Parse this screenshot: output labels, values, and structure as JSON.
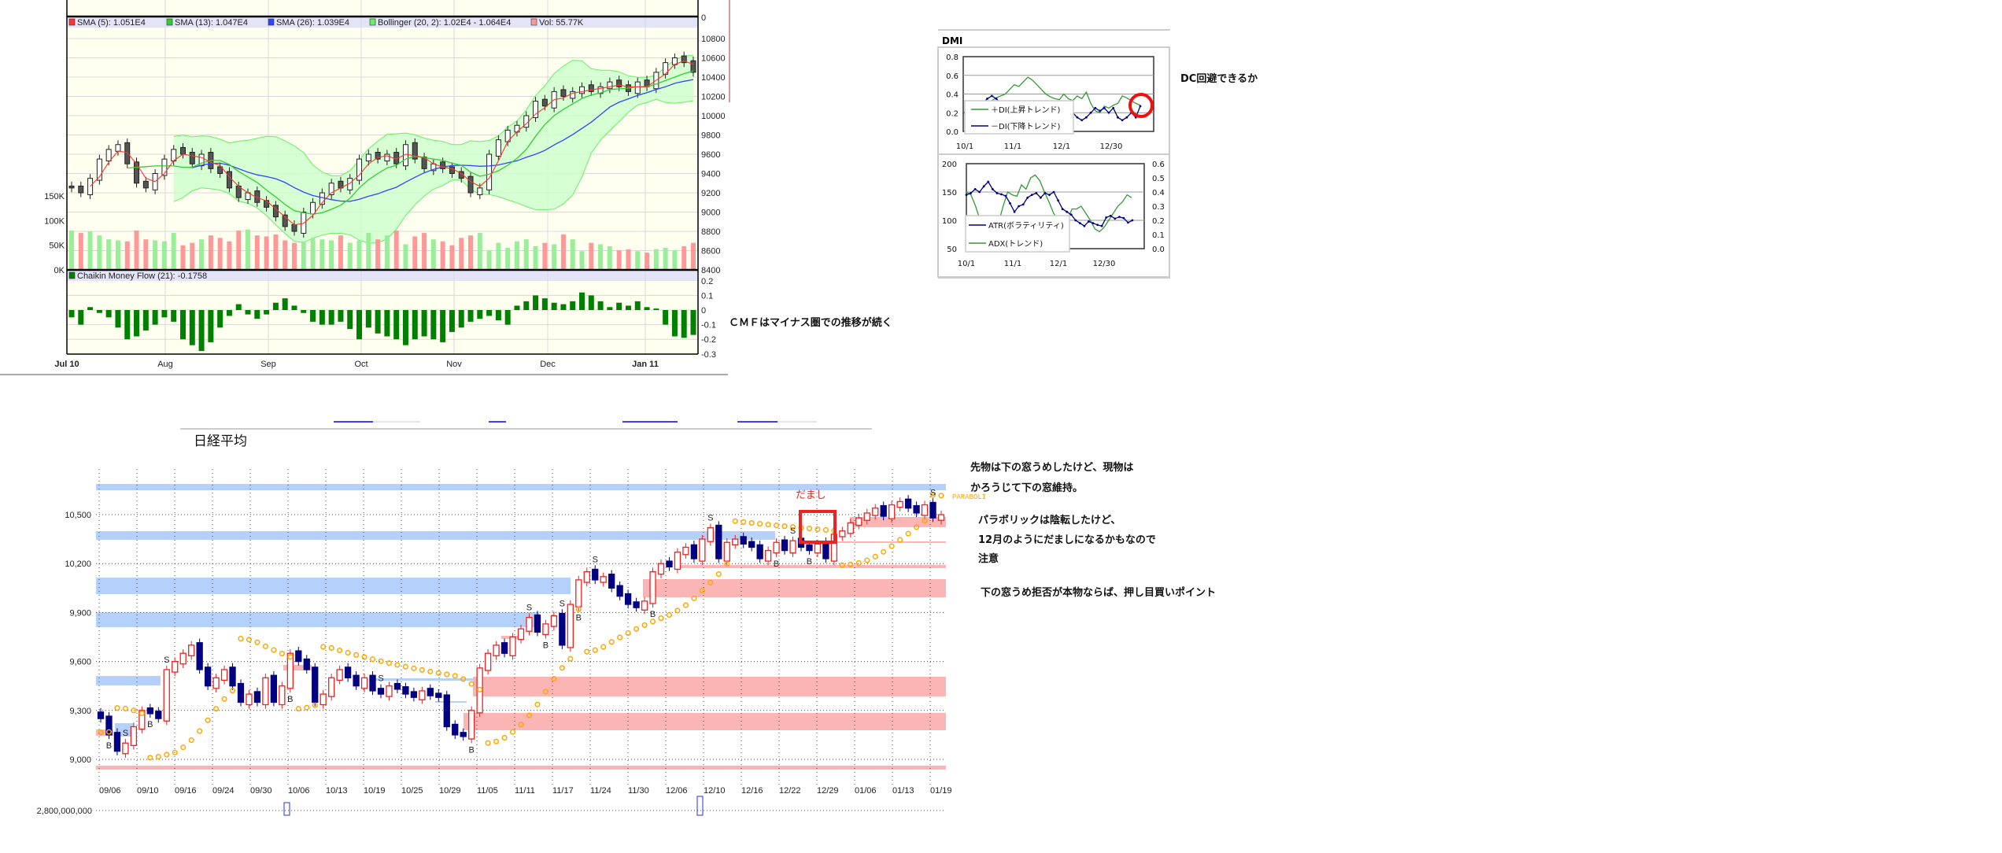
{
  "annotations": {
    "cmf_note": "ＣＭＦはマイナス圏での推移が続く",
    "dc_note": "DC回避できるか",
    "note1_line1": "先物は下の窓うめしたけど、現物は",
    "note1_line2": "かろうじて下の窓維持。",
    "note2_line1": "パラボリックは陰転したけど、",
    "note2_line2": "12月のようにだましになるかもなので",
    "note2_line3": "注意",
    "note3": "下の窓うめ拒否が本物ならば、押し目買いポイント"
  },
  "colors": {
    "sma5": "#ff3333",
    "sma13": "#33cc33",
    "sma26": "#3344ff",
    "bollinger": "#66ee66",
    "band_fill": "#ccffcc",
    "vol_up": "#99ee99",
    "vol_down": "#ff9999",
    "cmf": "#008000",
    "nikkei_up": "#ee2222",
    "nikkei_down": "#000080",
    "psar": "#ffa500",
    "blue_band": "#b3d1fb",
    "pink_band": "#fbb5b5",
    "circle": "#ee1111"
  },
  "chart_data": [
    {
      "type": "candlestick",
      "legend": {
        "sma5": "SMA (5): 1.051E4",
        "sma13": "SMA (13): 1.047E4",
        "sma26": "SMA (26): 1.039E4",
        "bollinger": "Bollinger (20, 2): 1.02E4 - 1.064E4",
        "vol": "Vol: 55.77K",
        "cmf": "Chaikin Money Flow (21): -0.1758"
      },
      "x_ticks": [
        "Jul 10",
        "Aug",
        "Sep",
        "Oct",
        "Nov",
        "Dec",
        "Jan 11"
      ],
      "y_ticks": [
        "0",
        "10800",
        "10600",
        "10400",
        "10200",
        "10000",
        "9800",
        "9600",
        "9400",
        "9200",
        "9000",
        "8800",
        "8600",
        "8400"
      ],
      "ylim": [
        8400,
        10800
      ],
      "volume_ticks": [
        "150K",
        "100K",
        "50K",
        "0K"
      ],
      "cmf_ticks": [
        "0.2",
        "0.1",
        "0",
        "-0.1",
        "-0.2",
        "-0.3"
      ],
      "close": [
        9250,
        9200,
        9350,
        9550,
        9650,
        9700,
        9500,
        9300,
        9250,
        9400,
        9550,
        9650,
        9600,
        9500,
        9600,
        9450,
        9400,
        9250,
        9150,
        9200,
        9100,
        9050,
        8950,
        8850,
        8800,
        9000,
        9100,
        9200,
        9300,
        9250,
        9350,
        9550,
        9600,
        9550,
        9600,
        9500,
        9700,
        9550,
        9450,
        9500,
        9450,
        9400,
        9350,
        9200,
        9250,
        9600,
        9750,
        9850,
        9900,
        10000,
        10150,
        10100,
        10250,
        10200,
        10250,
        10300,
        10250,
        10300,
        10350,
        10300,
        10250,
        10350,
        10300,
        10450,
        10550,
        10600,
        10550,
        10450
      ],
      "volume_k": [
        80,
        75,
        78,
        70,
        62,
        60,
        58,
        80,
        62,
        60,
        58,
        75,
        50,
        55,
        62,
        70,
        65,
        58,
        80,
        82,
        70,
        68,
        72,
        60,
        55,
        58,
        65,
        62,
        60,
        70,
        55,
        60,
        75,
        62,
        70,
        80,
        52,
        68,
        75,
        62,
        58,
        50,
        65,
        70,
        75,
        40,
        55,
        45,
        58,
        62,
        48,
        55,
        52,
        72,
        62,
        38,
        55,
        52,
        48,
        40,
        42,
        38,
        35,
        42,
        45,
        40,
        48,
        55
      ],
      "cmf": [
        -0.05,
        -0.1,
        0.02,
        -0.02,
        -0.05,
        -0.12,
        -0.2,
        -0.18,
        -0.14,
        -0.1,
        -0.05,
        -0.08,
        -0.2,
        -0.24,
        -0.28,
        -0.22,
        -0.12,
        -0.04,
        0.04,
        -0.03,
        -0.06,
        -0.03,
        0.05,
        0.08,
        0.03,
        -0.02,
        -0.08,
        -0.1,
        -0.1,
        -0.08,
        -0.13,
        -0.2,
        -0.12,
        -0.16,
        -0.18,
        -0.2,
        -0.24,
        -0.2,
        -0.18,
        -0.2,
        -0.22,
        -0.15,
        -0.12,
        -0.08,
        -0.06,
        -0.04,
        -0.07,
        -0.1,
        0.03,
        0.06,
        0.1,
        0.08,
        0.05,
        0.04,
        0.06,
        0.12,
        0.1,
        0.06,
        0.02,
        0.05,
        0.03,
        0.06,
        0.02,
        0.01,
        -0.1,
        -0.18,
        -0.19,
        -0.17
      ]
    },
    {
      "type": "candlestick",
      "title": "日経平均",
      "x_ticks": [
        "09/06",
        "09/10",
        "09/16",
        "09/24",
        "09/30",
        "10/06",
        "10/13",
        "10/19",
        "10/25",
        "10/29",
        "11/05",
        "11/11",
        "11/17",
        "11/24",
        "11/30",
        "12/06",
        "12/10",
        "12/16",
        "12/22",
        "12/29",
        "01/06",
        "01/13",
        "01/19"
      ],
      "y_ticks": [
        "10,500",
        "10,200",
        "9,900",
        "9,600",
        "9,300",
        "9,000"
      ],
      "ylim": [
        8850,
        10720
      ],
      "volume_tick": "2,800,000,000",
      "annotation": "だまし",
      "indicator_label": "PARABOLI",
      "close": [
        9250,
        9150,
        9050,
        9100,
        9200,
        9300,
        9280,
        9250,
        9550,
        9600,
        9650,
        9700,
        9550,
        9450,
        9500,
        9550,
        9450,
        9350,
        9400,
        9350,
        9500,
        9350,
        9450,
        9650,
        9600,
        9550,
        9350,
        9400,
        9500,
        9550,
        9500,
        9450,
        9500,
        9420,
        9400,
        9450,
        9430,
        9400,
        9380,
        9420,
        9390,
        9380,
        9200,
        9150,
        9140,
        9300,
        9560,
        9650,
        9700,
        9650,
        9750,
        9800,
        9870,
        9780,
        9830,
        9880,
        9700,
        9950,
        10100,
        10150,
        10100,
        10120,
        10050,
        10000,
        9950,
        9930,
        9970,
        10150,
        10200,
        10180,
        10270,
        10300,
        10230,
        10350,
        10420,
        10230,
        10330,
        10350,
        10320,
        10300,
        10230,
        10280,
        10330,
        10280,
        10340,
        10300,
        10280,
        10320,
        10230,
        10380,
        10400,
        10450,
        10480,
        10510,
        10540,
        10490,
        10560,
        10580,
        10540,
        10510,
        10560,
        10480,
        10500
      ],
      "signals": [
        {
          "i": 1,
          "t": "B"
        },
        {
          "i": 3,
          "t": "S"
        },
        {
          "i": 6,
          "t": "B"
        },
        {
          "i": 8,
          "t": "S"
        },
        {
          "i": 23,
          "t": "B"
        },
        {
          "i": 34,
          "t": "S"
        },
        {
          "i": 45,
          "t": "B"
        },
        {
          "i": 52,
          "t": "S"
        },
        {
          "i": 54,
          "t": "B"
        },
        {
          "i": 56,
          "t": "S"
        },
        {
          "i": 58,
          "t": "B"
        },
        {
          "i": 60,
          "t": "S"
        },
        {
          "i": 67,
          "t": "B"
        },
        {
          "i": 74,
          "t": "S"
        },
        {
          "i": 82,
          "t": "B"
        },
        {
          "i": 84,
          "t": "S"
        },
        {
          "i": 86,
          "t": "B"
        },
        {
          "i": 101,
          "t": "S"
        }
      ]
    },
    {
      "type": "line",
      "title": "DMI",
      "x_ticks": [
        "10/1",
        "11/1",
        "12/1",
        "12/30"
      ],
      "y_ticks": [
        "0.8",
        "0.6",
        "0.4",
        "0.2",
        "0.0"
      ],
      "ylim": [
        0,
        0.8
      ],
      "series": [
        {
          "name": "＋DI(上昇トレンド)",
          "values": [
            0.2,
            0.22,
            0.25,
            0.3,
            0.28,
            0.3,
            0.33,
            0.36,
            0.38,
            0.4,
            0.45,
            0.5,
            0.48,
            0.53,
            0.58,
            0.55,
            0.5,
            0.45,
            0.4,
            0.37,
            0.35,
            0.34,
            0.4,
            0.35,
            0.33,
            0.38,
            0.35,
            0.42,
            0.3,
            0.22,
            0.2,
            0.27,
            0.25,
            0.28,
            0.3,
            0.38,
            0.36,
            0.33,
            0.3,
            0.28
          ]
        },
        {
          "name": "－DI(下降トレンド)",
          "values": [
            0.2,
            0.2,
            0.22,
            0.25,
            0.3,
            0.35,
            0.38,
            0.35,
            0.3,
            0.28,
            0.25,
            0.22,
            0.2,
            0.2,
            0.2,
            0.2,
            0.22,
            0.25,
            0.25,
            0.28,
            0.3,
            0.25,
            0.2,
            0.18,
            0.2,
            0.15,
            0.12,
            0.15,
            0.2,
            0.25,
            0.22,
            0.25,
            0.2,
            0.25,
            0.15,
            0.12,
            0.15,
            0.2,
            0.15,
            0.27
          ]
        }
      ]
    },
    {
      "type": "line",
      "x_ticks": [
        "10/1",
        "11/1",
        "12/1",
        "12/30"
      ],
      "y_ticks_left": [
        "200",
        "150",
        "100",
        "50"
      ],
      "y_ticks_right": [
        "0.6",
        "0.5",
        "0.4",
        "0.3",
        "0.2",
        "0.1",
        "0.0"
      ],
      "ylim_left": [
        50,
        200
      ],
      "ylim_right": [
        0,
        0.6
      ],
      "series": [
        {
          "name": "ATR(ボラティリティ)",
          "axis": "left",
          "values": [
            145,
            148,
            155,
            150,
            160,
            168,
            155,
            148,
            146,
            143,
            130,
            115,
            125,
            128,
            140,
            145,
            148,
            140,
            148,
            145,
            150,
            135,
            120,
            115,
            110,
            100,
            95,
            90,
            98,
            95,
            92,
            90,
            105,
            108,
            103,
            106,
            104,
            96,
            100
          ]
        },
        {
          "name": "ADX(トレンド)",
          "axis": "right",
          "values": [
            0.4,
            0.38,
            0.3,
            0.2,
            0.15,
            0.12,
            0.1,
            0.18,
            0.3,
            0.4,
            0.38,
            0.37,
            0.45,
            0.42,
            0.5,
            0.52,
            0.48,
            0.4,
            0.33,
            0.25,
            0.2,
            0.18,
            0.2,
            0.28,
            0.28,
            0.3,
            0.25,
            0.2,
            0.14,
            0.12,
            0.15,
            0.2,
            0.25,
            0.3,
            0.33,
            0.38,
            0.36
          ]
        }
      ]
    }
  ]
}
